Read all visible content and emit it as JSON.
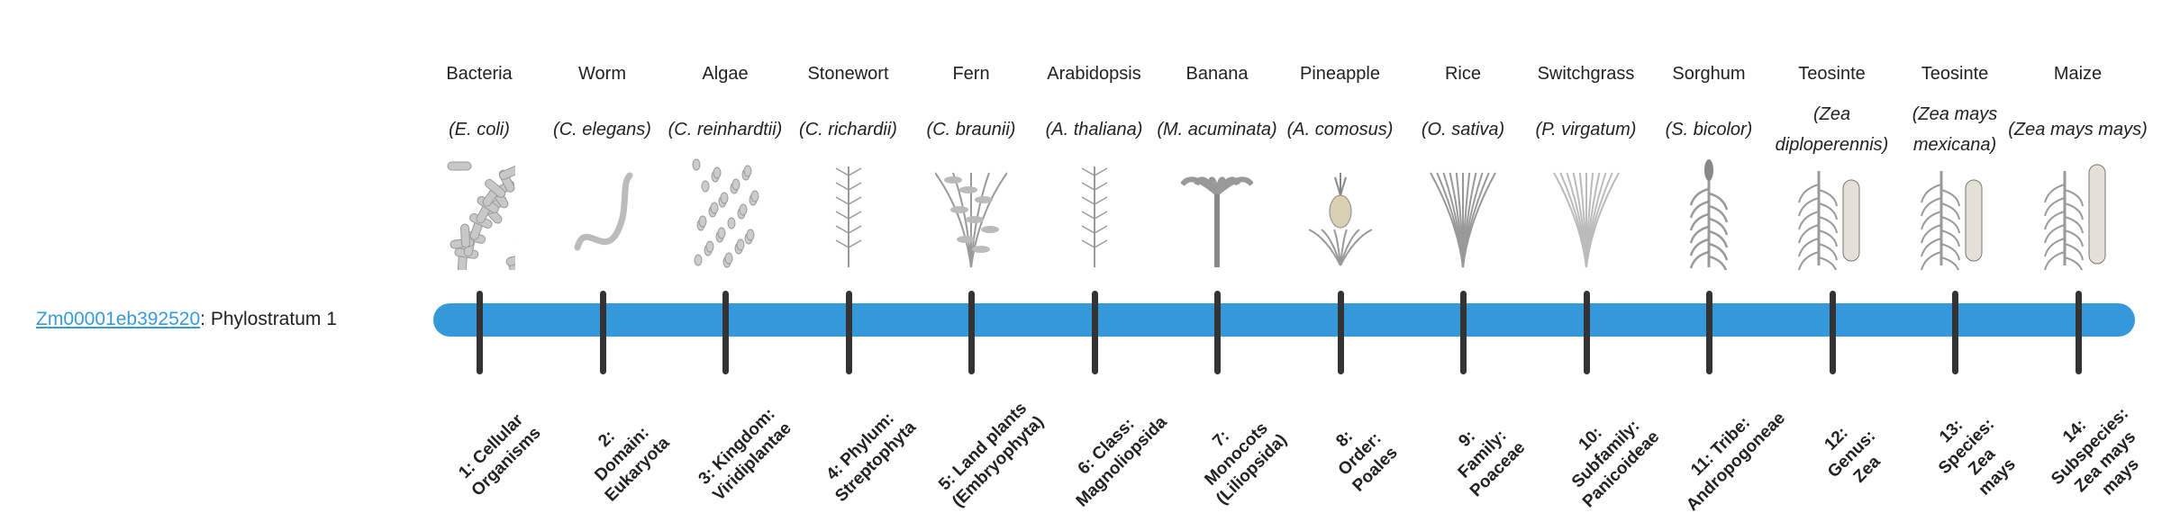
{
  "gene": {
    "id": "Zm00001eb392520",
    "suffix": ": Phylostratum 1"
  },
  "colors": {
    "bar": "#3498db",
    "tick": "#333333",
    "link": "#3a9ad9"
  },
  "columns": [
    {
      "common": "Bacteria",
      "scientific": "(E. coli)",
      "icon": "bacteria",
      "stratum": "1: Cellular Organisms"
    },
    {
      "common": "Worm",
      "scientific": "(C. elegans)",
      "icon": "worm",
      "stratum": "2: Domain: Eukaryota"
    },
    {
      "common": "Algae",
      "scientific": "(C. reinhardtii)",
      "icon": "algae",
      "stratum": "3: Kingdom: Viridiplantae"
    },
    {
      "common": "Stonewort",
      "scientific": "(C. richardii)",
      "icon": "stonewort",
      "stratum": "4: Phylum: Streptophyta"
    },
    {
      "common": "Fern",
      "scientific": "(C. braunii)",
      "icon": "fern",
      "stratum": "5: Land plants (Embryophyta)"
    },
    {
      "common": "Arabidopsis",
      "scientific": "(A. thaliana)",
      "icon": "arabidopsis",
      "stratum": "6: Class: Magnoliopsida"
    },
    {
      "common": "Banana",
      "scientific": "(M. acuminata)",
      "icon": "banana",
      "stratum": "7: Monocots (Liliopsida)"
    },
    {
      "common": "Pineapple",
      "scientific": "(A. comosus)",
      "icon": "pineapple",
      "stratum": "8: Order: Poales"
    },
    {
      "common": "Rice",
      "scientific": "(O. sativa)",
      "icon": "rice",
      "stratum": "9: Family: Poaceae"
    },
    {
      "common": "Switchgrass",
      "scientific": "(P. virgatum)",
      "icon": "switchgrass",
      "stratum": "10: Subfamily: Panicoideae"
    },
    {
      "common": "Sorghum",
      "scientific": "(S. bicolor)",
      "icon": "sorghum",
      "stratum": "11: Tribe: Andropogoneae"
    },
    {
      "common": "Teosinte",
      "scientific": "(Zea diploperennis)",
      "icon": "teosinte",
      "stratum": "12: Genus: Zea"
    },
    {
      "common": "Teosinte",
      "scientific": "(Zea mays mexicana)",
      "icon": "teosinte",
      "stratum": "13: Species: Zea mays"
    },
    {
      "common": "Maize",
      "scientific": "(Zea mays mays)",
      "icon": "maize",
      "stratum": "14: Subspecies: Zea mays mays"
    }
  ]
}
